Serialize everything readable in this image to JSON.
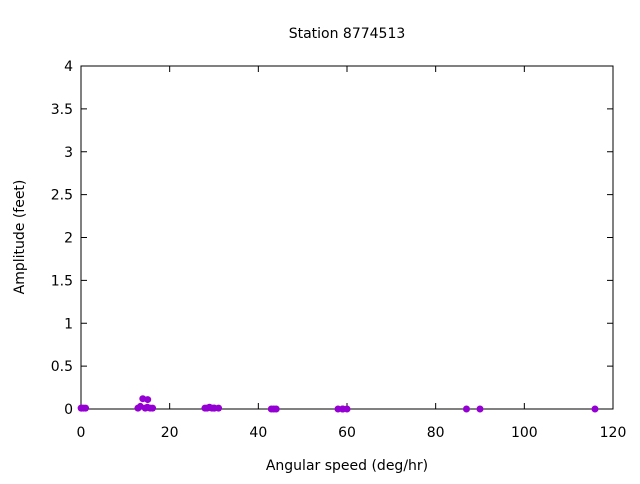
{
  "chart_data": {
    "type": "scatter",
    "title": "Station 8774513",
    "xlabel": "Angular speed (deg/hr)",
    "ylabel": "Amplitude (feet)",
    "xlim": [
      0,
      120
    ],
    "ylim": [
      0,
      4
    ],
    "xticks": [
      0,
      20,
      40,
      60,
      80,
      100,
      120
    ],
    "yticks": [
      0,
      0.5,
      1,
      1.5,
      2,
      2.5,
      3,
      3.5,
      4
    ],
    "ytick_labels": [
      "0",
      "0.5",
      "1",
      "1.5",
      "2",
      "2.5",
      "3",
      "3.5",
      "4"
    ],
    "grid": false,
    "color": "#9400d3",
    "points": [
      {
        "x": 0.04,
        "y": 0.01
      },
      {
        "x": 0.08,
        "y": 0.01
      },
      {
        "x": 0.54,
        "y": 0.01
      },
      {
        "x": 1.02,
        "y": 0.01
      },
      {
        "x": 12.85,
        "y": 0.01
      },
      {
        "x": 13.4,
        "y": 0.03
      },
      {
        "x": 13.94,
        "y": 0.12
      },
      {
        "x": 14.49,
        "y": 0.01
      },
      {
        "x": 14.96,
        "y": 0.02
      },
      {
        "x": 15.04,
        "y": 0.11
      },
      {
        "x": 15.59,
        "y": 0.01
      },
      {
        "x": 16.14,
        "y": 0.01
      },
      {
        "x": 27.97,
        "y": 0.01
      },
      {
        "x": 28.44,
        "y": 0.01
      },
      {
        "x": 28.98,
        "y": 0.02
      },
      {
        "x": 29.53,
        "y": 0.01
      },
      {
        "x": 30.0,
        "y": 0.01
      },
      {
        "x": 30.08,
        "y": 0.01
      },
      {
        "x": 31.02,
        "y": 0.01
      },
      {
        "x": 42.93,
        "y": 0.0
      },
      {
        "x": 43.48,
        "y": 0.0
      },
      {
        "x": 44.03,
        "y": 0.0
      },
      {
        "x": 57.97,
        "y": 0.0
      },
      {
        "x": 58.98,
        "y": 0.0
      },
      {
        "x": 59.07,
        "y": 0.0
      },
      {
        "x": 60.0,
        "y": 0.0
      },
      {
        "x": 86.95,
        "y": 0.0
      },
      {
        "x": 90.0,
        "y": 0.0
      },
      {
        "x": 115.94,
        "y": 0.0
      }
    ]
  }
}
